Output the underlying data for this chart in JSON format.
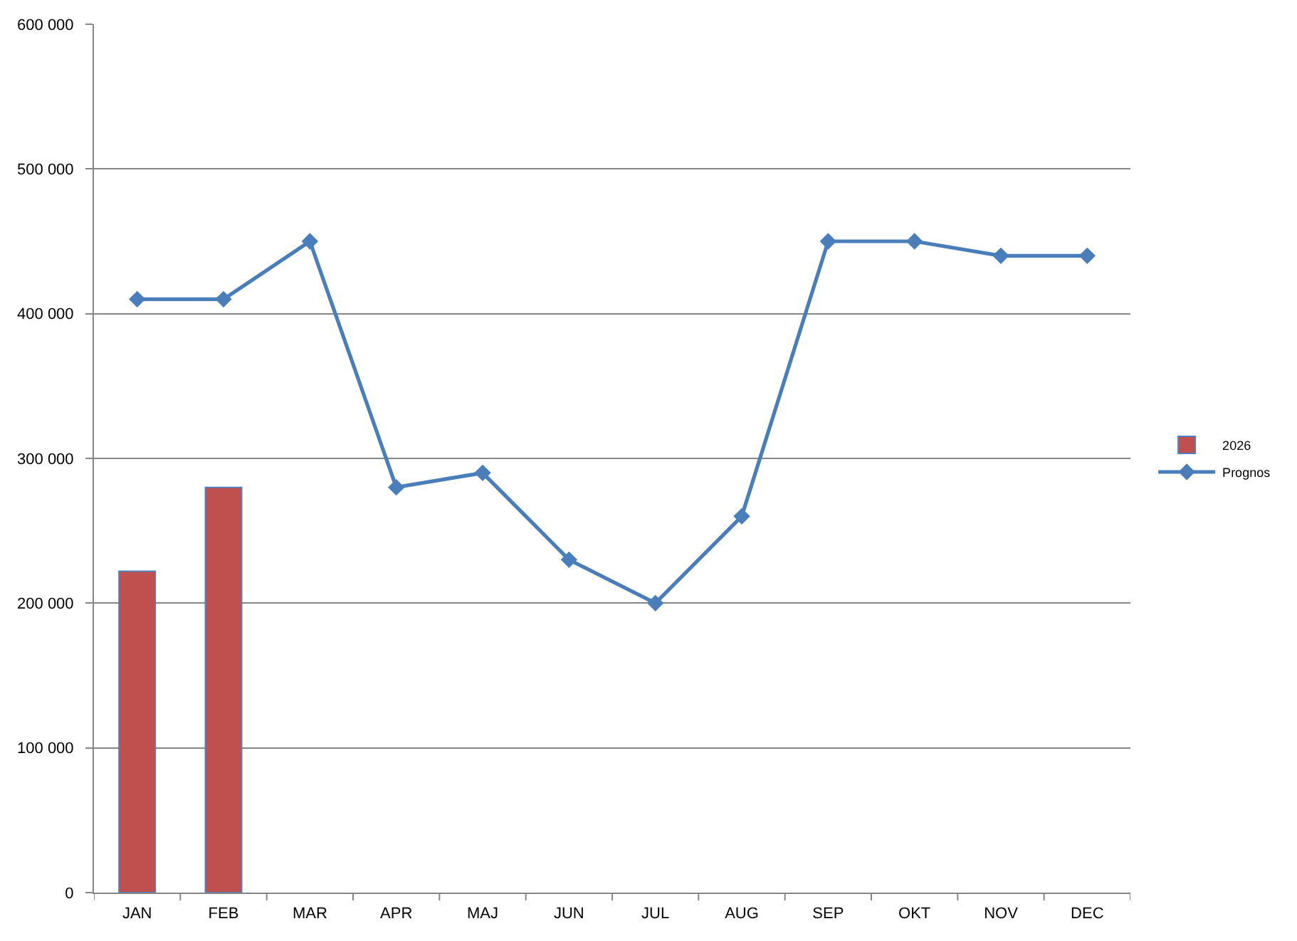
{
  "chart_data": {
    "type": "bar",
    "categories": [
      "JAN",
      "FEB",
      "MAR",
      "APR",
      "MAJ",
      "JUN",
      "JUL",
      "AUG",
      "SEP",
      "OKT",
      "NOV",
      "DEC"
    ],
    "series": [
      {
        "name": "2026",
        "color": "#c0504d",
        "values": [
          222000,
          280000,
          null,
          null,
          null,
          null,
          null,
          null,
          null,
          null,
          null,
          null
        ]
      },
      {
        "name": "Prognos",
        "type": "line",
        "color": "#4a7ebb",
        "values": [
          410000,
          410000,
          450000,
          280000,
          290000,
          230000,
          200000,
          260000,
          450000,
          450000,
          440000,
          440000
        ]
      }
    ],
    "ylim": [
      0,
      600000
    ],
    "yticks": [
      0,
      {
        "value": 100000,
        "label": "100 000"
      },
      {
        "value": 200000,
        "label": "200 000"
      },
      {
        "value": 300000,
        "label": "300 000"
      },
      {
        "value": 400000,
        "label": "400 000"
      },
      {
        "value": 500000,
        "label": "500 000"
      },
      {
        "value": 600000,
        "label": "600 000"
      }
    ],
    "grid": "y",
    "legend": "right",
    "marker": "diamond",
    "line_style": "solid"
  }
}
